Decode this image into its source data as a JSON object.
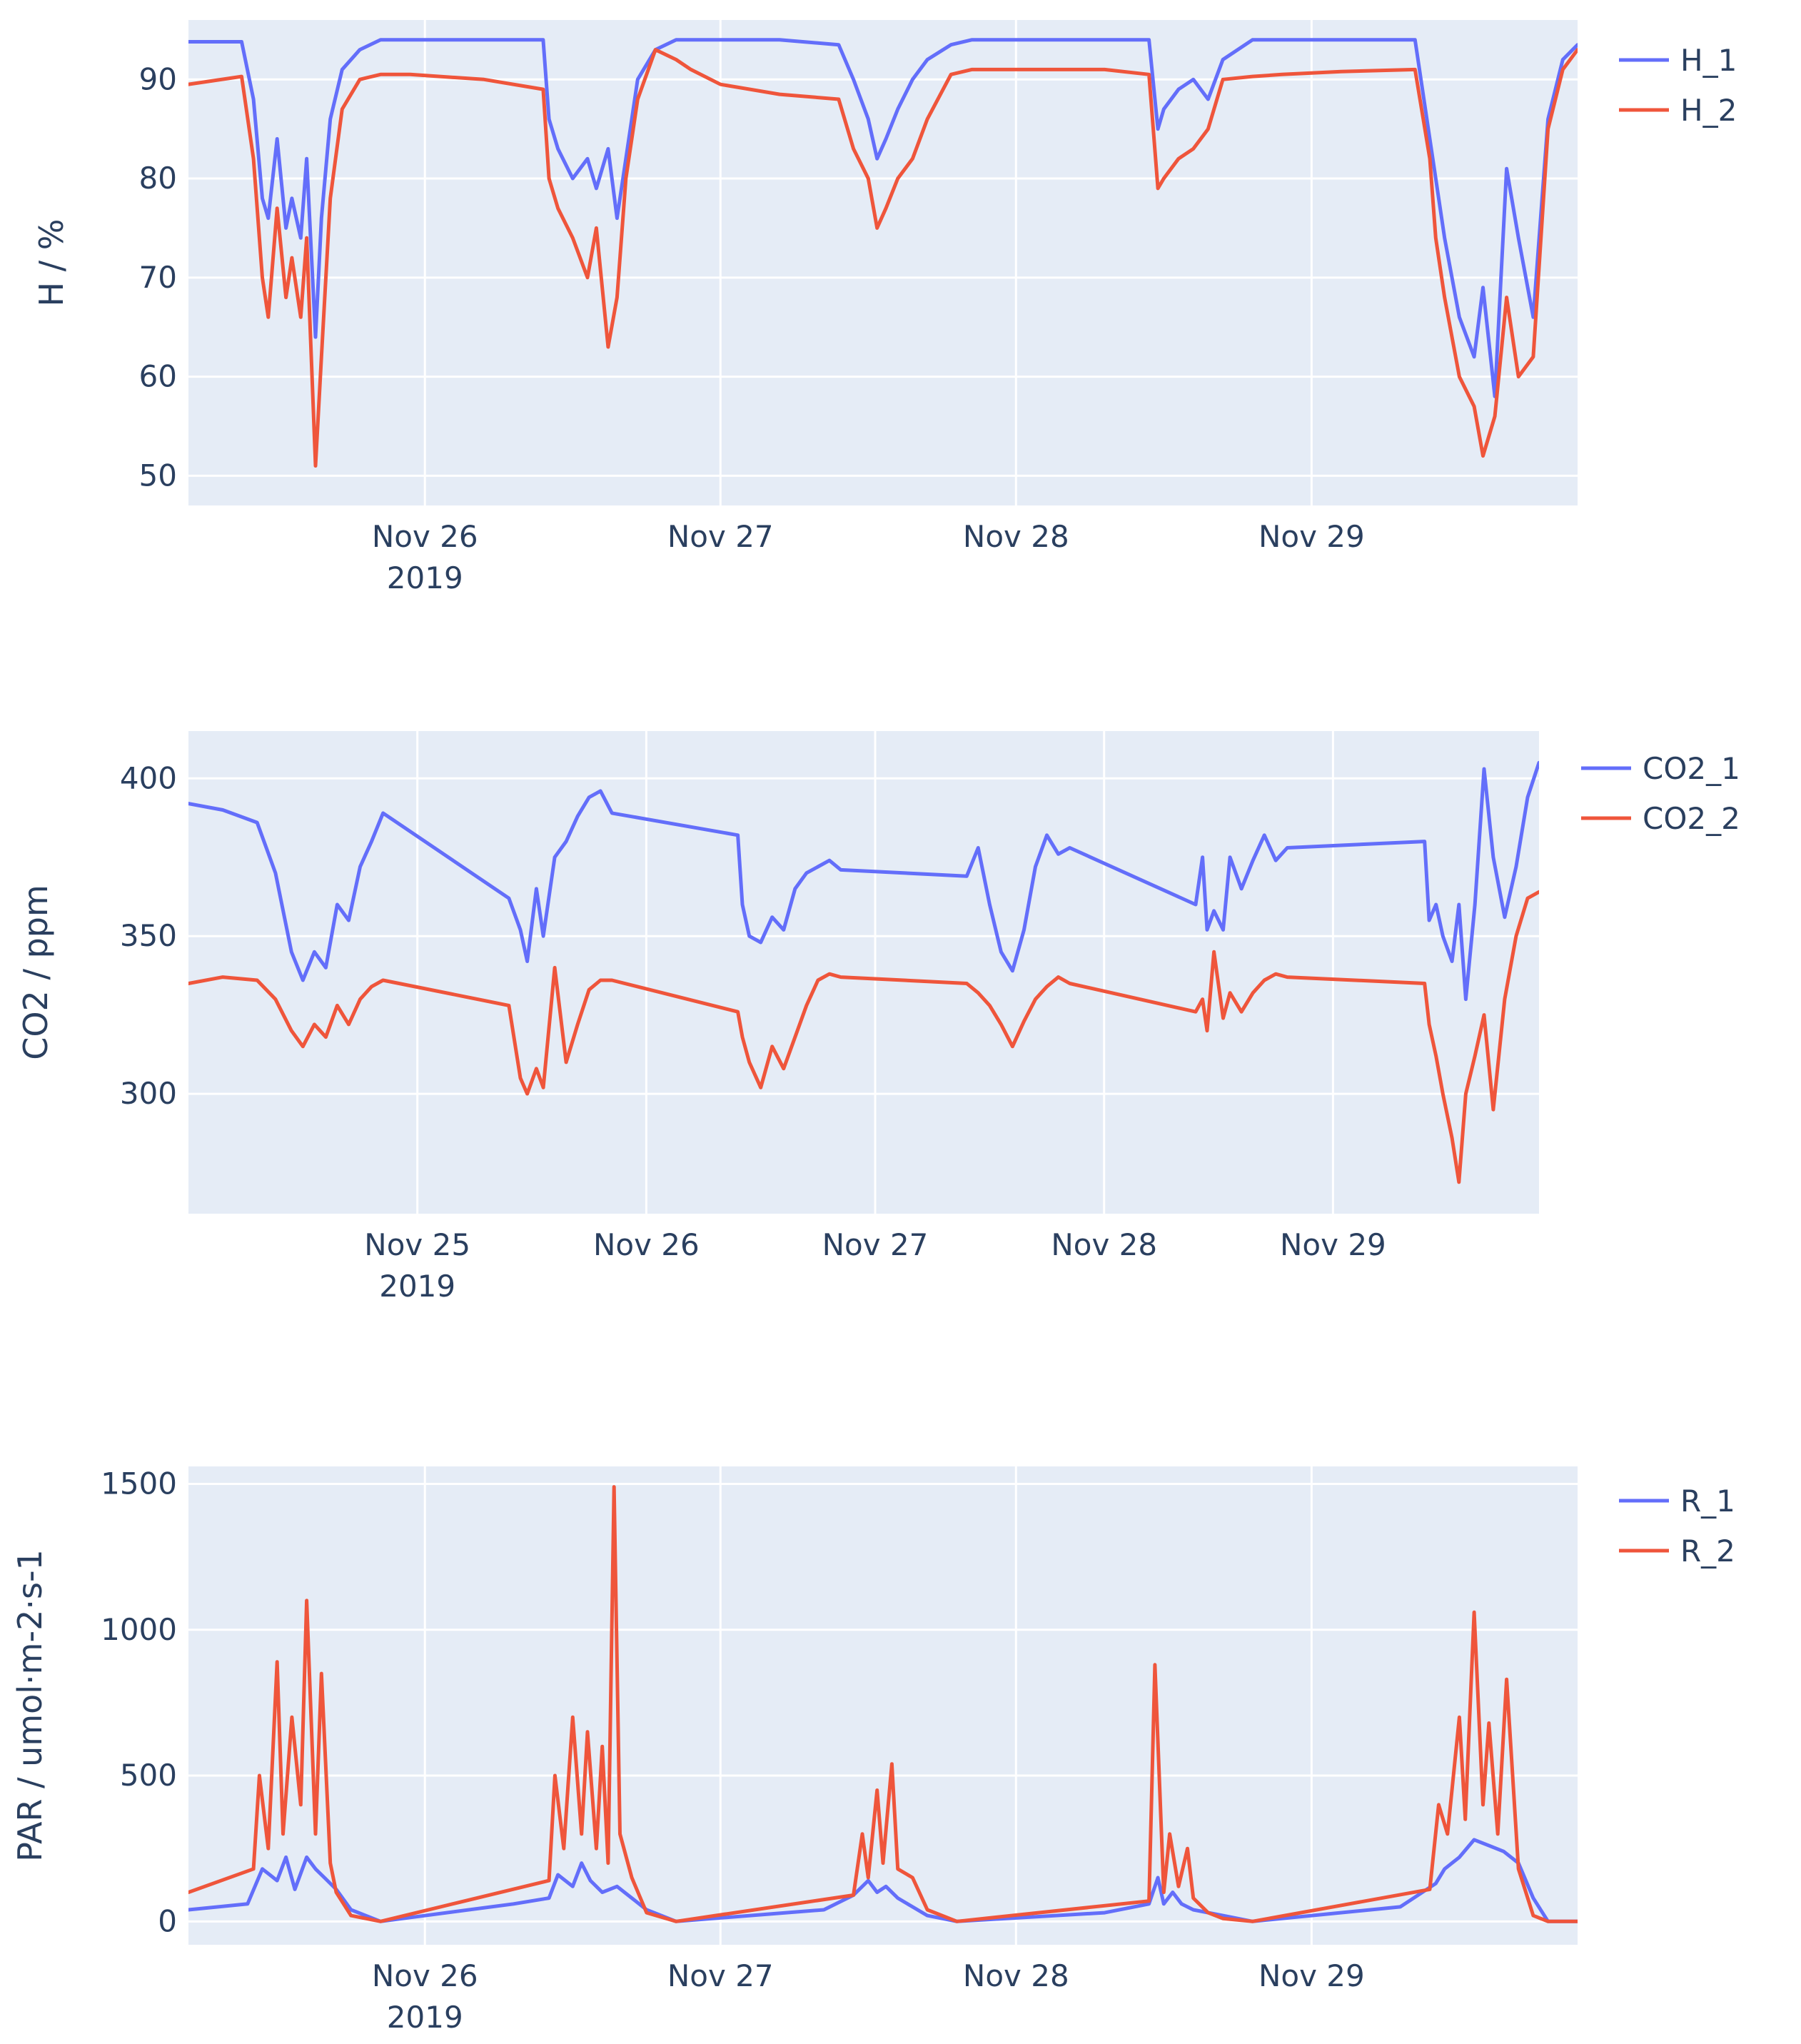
{
  "chart_data": [
    {
      "type": "line",
      "id": "humidity",
      "ylabel": "H  / %",
      "xlim": [
        25.2,
        29.9
      ],
      "ylim": [
        47,
        96
      ],
      "yticks": [
        50,
        60,
        70,
        80,
        90
      ],
      "xticks": [
        {
          "value": 26.0,
          "label": "Nov 26",
          "sublabel": "2019"
        },
        {
          "value": 27.0,
          "label": "Nov 27"
        },
        {
          "value": 28.0,
          "label": "Nov 28"
        },
        {
          "value": 29.0,
          "label": "Nov 29"
        }
      ],
      "series": [
        {
          "name": "H_1",
          "color": "#636efa",
          "x": [
            25.2,
            25.38,
            25.42,
            25.45,
            25.47,
            25.5,
            25.53,
            25.55,
            25.58,
            25.6,
            25.63,
            25.65,
            25.68,
            25.72,
            25.78,
            25.85,
            25.95,
            26.2,
            26.4,
            26.42,
            26.45,
            26.5,
            26.55,
            26.58,
            26.62,
            26.65,
            26.68,
            26.72,
            26.78,
            26.85,
            26.9,
            27.0,
            27.2,
            27.4,
            27.45,
            27.5,
            27.53,
            27.56,
            27.6,
            27.65,
            27.7,
            27.78,
            27.85,
            28.0,
            28.3,
            28.45,
            28.48,
            28.5,
            28.55,
            28.6,
            28.65,
            28.7,
            28.8,
            28.9,
            29.1,
            29.35,
            29.4,
            29.42,
            29.45,
            29.5,
            29.55,
            29.58,
            29.62,
            29.66,
            29.7,
            29.75,
            29.8,
            29.85,
            29.9
          ],
          "values": [
            93.8,
            93.8,
            88,
            78,
            76,
            84,
            75,
            78,
            74,
            82,
            64,
            76,
            86,
            91,
            93,
            94,
            94,
            94,
            94,
            86,
            83,
            80,
            82,
            79,
            83,
            76,
            82,
            90,
            93,
            94,
            94,
            94,
            94,
            93.5,
            90,
            86,
            82,
            84,
            87,
            90,
            92,
            93.5,
            94,
            94,
            94,
            94,
            85,
            87,
            89,
            90,
            88,
            92,
            94,
            94,
            94,
            94,
            84,
            80,
            74,
            66,
            62,
            69,
            58,
            81,
            74,
            66,
            86,
            92,
            93.5
          ]
        },
        {
          "name": "H_2",
          "color": "#ef553b",
          "x": [
            25.2,
            25.38,
            25.42,
            25.45,
            25.47,
            25.5,
            25.53,
            25.55,
            25.58,
            25.6,
            25.63,
            25.65,
            25.68,
            25.72,
            25.78,
            25.85,
            25.95,
            26.2,
            26.4,
            26.42,
            26.45,
            26.5,
            26.55,
            26.58,
            26.62,
            26.65,
            26.68,
            26.72,
            26.78,
            26.85,
            26.9,
            27.0,
            27.2,
            27.4,
            27.45,
            27.5,
            27.53,
            27.56,
            27.6,
            27.65,
            27.7,
            27.78,
            27.85,
            28.0,
            28.3,
            28.45,
            28.48,
            28.5,
            28.55,
            28.6,
            28.65,
            28.7,
            28.8,
            28.9,
            29.1,
            29.35,
            29.4,
            29.42,
            29.45,
            29.5,
            29.55,
            29.58,
            29.62,
            29.66,
            29.7,
            29.75,
            29.8,
            29.85,
            29.9
          ],
          "values": [
            89.5,
            90.3,
            82,
            70,
            66,
            77,
            68,
            72,
            66,
            74,
            51,
            62,
            78,
            87,
            90,
            90.5,
            90.5,
            90,
            89,
            80,
            77,
            74,
            70,
            75,
            63,
            68,
            80,
            88,
            93,
            92,
            91,
            89.5,
            88.5,
            88,
            83,
            80,
            75,
            77,
            80,
            82,
            86,
            90.5,
            91,
            91,
            91,
            90.5,
            79,
            80,
            82,
            83,
            85,
            90,
            90.3,
            90.5,
            90.8,
            91,
            82,
            74,
            68,
            60,
            57,
            52,
            56,
            68,
            60,
            62,
            85,
            91,
            93
          ]
        }
      ]
    },
    {
      "type": "line",
      "id": "co2",
      "ylabel": "CO2 / ppm",
      "xlim": [
        24.0,
        29.9
      ],
      "ylim": [
        262,
        415
      ],
      "yticks": [
        300,
        350,
        400
      ],
      "xticks": [
        {
          "value": 25.0,
          "label": "Nov 25",
          "sublabel": "2019"
        },
        {
          "value": 26.0,
          "label": "Nov 26"
        },
        {
          "value": 27.0,
          "label": "Nov 27"
        },
        {
          "value": 28.0,
          "label": "Nov 28"
        },
        {
          "value": 29.0,
          "label": "Nov 29"
        }
      ],
      "series": [
        {
          "name": "CO2_1",
          "color": "#636efa",
          "x": [
            24.0,
            24.15,
            24.3,
            24.38,
            24.45,
            24.5,
            24.55,
            24.6,
            24.65,
            24.7,
            24.75,
            24.8,
            24.85,
            25.4,
            25.45,
            25.48,
            25.52,
            25.55,
            25.6,
            25.65,
            25.7,
            25.75,
            25.8,
            25.85,
            26.4,
            26.42,
            26.45,
            26.5,
            26.55,
            26.6,
            26.65,
            26.7,
            26.75,
            26.8,
            26.85,
            27.4,
            27.45,
            27.5,
            27.55,
            27.6,
            27.65,
            27.7,
            27.75,
            27.8,
            27.85,
            28.4,
            28.43,
            28.45,
            28.48,
            28.52,
            28.55,
            28.6,
            28.65,
            28.7,
            28.75,
            28.8,
            29.4,
            29.42,
            29.45,
            29.48,
            29.52,
            29.55,
            29.58,
            29.62,
            29.66,
            29.7,
            29.75,
            29.8,
            29.85,
            29.9
          ],
          "values": [
            392,
            390,
            386,
            370,
            345,
            336,
            345,
            340,
            360,
            355,
            372,
            380,
            389,
            362,
            352,
            342,
            365,
            350,
            375,
            380,
            388,
            394,
            396,
            389,
            382,
            360,
            350,
            348,
            356,
            352,
            365,
            370,
            372,
            374,
            371,
            369,
            378,
            360,
            345,
            339,
            352,
            372,
            382,
            376,
            378,
            360,
            375,
            352,
            358,
            352,
            375,
            365,
            374,
            382,
            374,
            378,
            380,
            355,
            360,
            350,
            342,
            360,
            330,
            360,
            403,
            375,
            356,
            372,
            394,
            405
          ]
        },
        {
          "name": "CO2_2",
          "color": "#ef553b",
          "x": [
            24.0,
            24.15,
            24.3,
            24.38,
            24.45,
            24.5,
            24.55,
            24.6,
            24.65,
            24.7,
            24.75,
            24.8,
            24.85,
            25.4,
            25.45,
            25.48,
            25.52,
            25.55,
            25.6,
            25.65,
            25.7,
            25.75,
            25.8,
            25.85,
            26.4,
            26.42,
            26.45,
            26.5,
            26.55,
            26.6,
            26.65,
            26.7,
            26.75,
            26.8,
            26.85,
            27.4,
            27.45,
            27.5,
            27.55,
            27.6,
            27.65,
            27.7,
            27.75,
            27.8,
            27.85,
            28.4,
            28.43,
            28.45,
            28.48,
            28.52,
            28.55,
            28.6,
            28.65,
            28.7,
            28.75,
            28.8,
            29.4,
            29.42,
            29.45,
            29.48,
            29.52,
            29.55,
            29.58,
            29.62,
            29.66,
            29.7,
            29.75,
            29.8,
            29.85,
            29.9
          ],
          "values": [
            335,
            337,
            336,
            330,
            320,
            315,
            322,
            318,
            328,
            322,
            330,
            334,
            336,
            328,
            305,
            300,
            308,
            302,
            340,
            310,
            322,
            333,
            336,
            336,
            326,
            318,
            310,
            302,
            315,
            308,
            318,
            328,
            336,
            338,
            337,
            335,
            332,
            328,
            322,
            315,
            323,
            330,
            334,
            337,
            335,
            326,
            330,
            320,
            345,
            324,
            332,
            326,
            332,
            336,
            338,
            337,
            335,
            322,
            312,
            300,
            286,
            272,
            300,
            312,
            325,
            295,
            330,
            350,
            362,
            364
          ]
        }
      ]
    },
    {
      "type": "line",
      "id": "par",
      "ylabel": "PAR  / umol·m-2·s-1",
      "xlim": [
        25.2,
        29.9
      ],
      "ylim": [
        -80,
        1560
      ],
      "yticks": [
        0,
        500,
        1000,
        1500
      ],
      "xticks": [
        {
          "value": 26.0,
          "label": "Nov 26",
          "sublabel": "2019"
        },
        {
          "value": 27.0,
          "label": "Nov 27"
        },
        {
          "value": 28.0,
          "label": "Nov 28"
        },
        {
          "value": 29.0,
          "label": "Nov 29"
        }
      ],
      "series": [
        {
          "name": "R_1",
          "color": "#636efa",
          "x": [
            25.2,
            25.4,
            25.45,
            25.5,
            25.53,
            25.56,
            25.6,
            25.63,
            25.66,
            25.7,
            25.75,
            25.85,
            26.3,
            26.42,
            26.45,
            26.5,
            26.53,
            26.56,
            26.6,
            26.65,
            26.7,
            26.75,
            26.85,
            27.35,
            27.45,
            27.5,
            27.53,
            27.56,
            27.6,
            27.65,
            27.7,
            27.8,
            28.3,
            28.45,
            28.48,
            28.5,
            28.53,
            28.56,
            28.6,
            28.7,
            28.8,
            29.3,
            29.42,
            29.45,
            29.5,
            29.55,
            29.6,
            29.65,
            29.7,
            29.75,
            29.8,
            29.9
          ],
          "values": [
            40,
            60,
            180,
            140,
            220,
            110,
            220,
            180,
            150,
            110,
            40,
            0,
            60,
            80,
            160,
            120,
            200,
            140,
            100,
            120,
            80,
            40,
            0,
            40,
            90,
            140,
            100,
            120,
            80,
            50,
            20,
            0,
            30,
            60,
            150,
            60,
            100,
            60,
            40,
            20,
            0,
            50,
            130,
            180,
            220,
            280,
            260,
            240,
            200,
            80,
            0,
            0
          ]
        },
        {
          "name": "R_2",
          "color": "#ef553b",
          "x": [
            25.2,
            25.42,
            25.44,
            25.47,
            25.5,
            25.52,
            25.55,
            25.58,
            25.6,
            25.63,
            25.65,
            25.68,
            25.7,
            25.75,
            25.85,
            26.42,
            26.44,
            26.47,
            26.5,
            26.53,
            26.55,
            26.58,
            26.6,
            26.62,
            26.64,
            26.66,
            26.7,
            26.75,
            26.85,
            27.45,
            27.48,
            27.5,
            27.53,
            27.55,
            27.58,
            27.6,
            27.65,
            27.7,
            27.8,
            28.45,
            28.47,
            28.5,
            28.52,
            28.55,
            28.58,
            28.6,
            28.65,
            28.7,
            28.8,
            29.4,
            29.43,
            29.46,
            29.5,
            29.52,
            29.55,
            29.58,
            29.6,
            29.63,
            29.66,
            29.7,
            29.75,
            29.8,
            29.9
          ],
          "values": [
            100,
            180,
            500,
            250,
            890,
            300,
            700,
            400,
            1100,
            300,
            850,
            200,
            100,
            20,
            0,
            140,
            500,
            250,
            700,
            300,
            650,
            250,
            600,
            200,
            1490,
            300,
            150,
            30,
            0,
            90,
            300,
            150,
            450,
            200,
            540,
            180,
            150,
            40,
            0,
            70,
            880,
            100,
            300,
            120,
            250,
            80,
            30,
            10,
            0,
            110,
            400,
            300,
            700,
            350,
            1060,
            400,
            680,
            300,
            830,
            180,
            20,
            0,
            0
          ]
        }
      ]
    }
  ]
}
